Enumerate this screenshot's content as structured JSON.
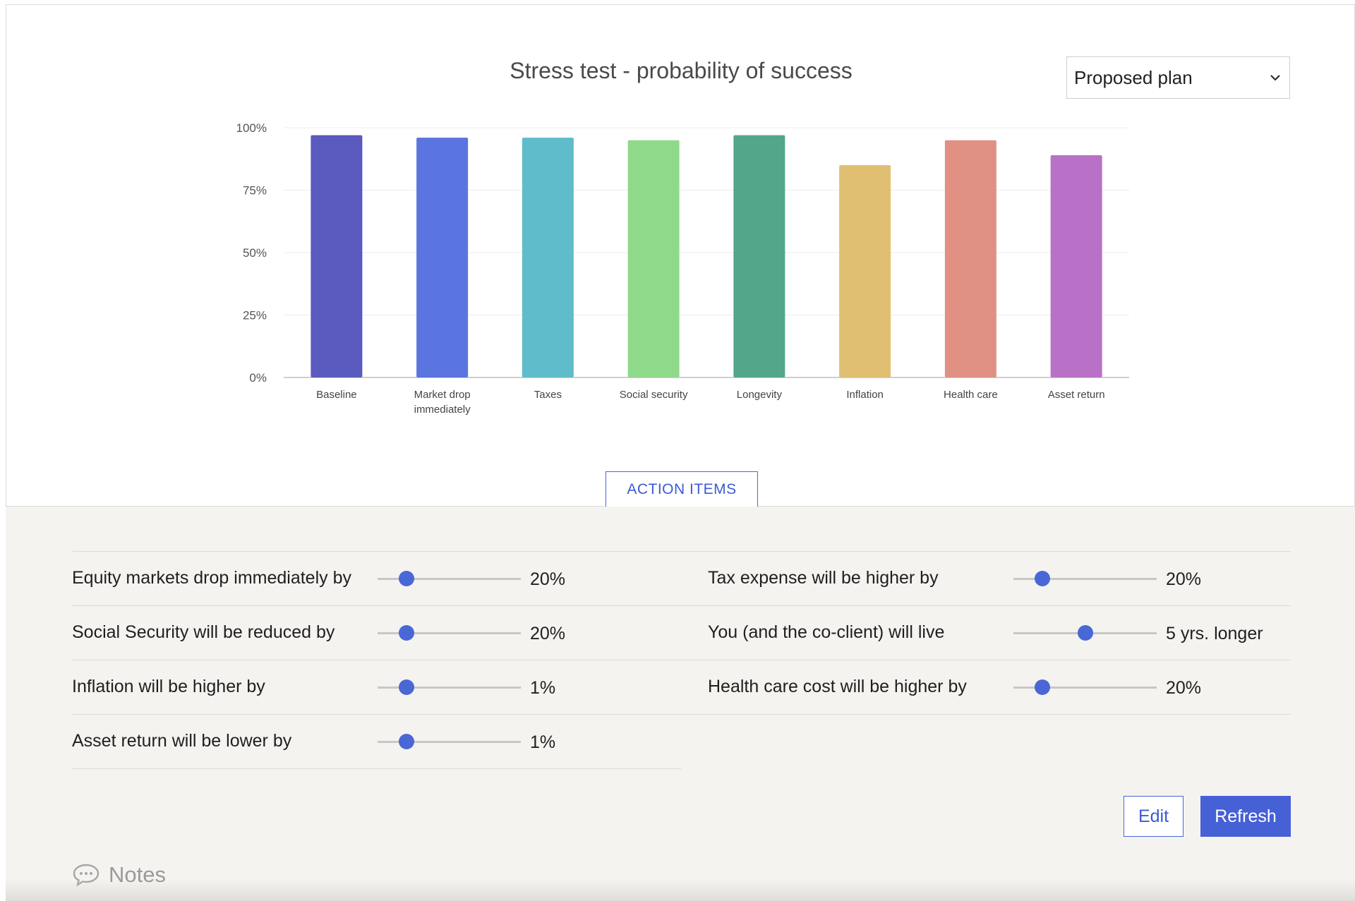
{
  "chart_panel": {
    "title": "Stress test - probability of success",
    "plan_select": {
      "selected": "Proposed plan",
      "icon": "chevron-down-icon"
    },
    "action_items_label": "ACTION ITEMS"
  },
  "chart_data": {
    "type": "bar",
    "title": "Stress test - probability of success",
    "xlabel": "",
    "ylabel": "",
    "categories": [
      "Baseline",
      "Market drop immediately",
      "Taxes",
      "Social security",
      "Longevity",
      "Inflation",
      "Health care",
      "Asset return"
    ],
    "values": [
      97,
      96,
      96,
      95,
      97,
      85,
      95,
      89
    ],
    "colors": [
      "#5a5abf",
      "#5a74e0",
      "#5fbccb",
      "#8fd98b",
      "#54a68b",
      "#e1bf72",
      "#e09183",
      "#b871c7"
    ],
    "yticks": [
      "0%",
      "25%",
      "50%",
      "75%",
      "100%"
    ],
    "ylim": [
      0,
      100
    ],
    "grid": true,
    "legend": "none"
  },
  "sliders": [
    {
      "label": "Equity markets drop immediately by",
      "value": "20%",
      "level": 0.2
    },
    {
      "label": "Tax expense will be higher by",
      "value": "20%",
      "level": 0.2
    },
    {
      "label": "Social Security will be reduced by",
      "value": "20%",
      "level": 0.2
    },
    {
      "label": "You (and the co-client) will live",
      "value": "5 yrs. longer",
      "level": 0.5
    },
    {
      "label": "Inflation will be higher by",
      "value": "1%",
      "level": 0.2
    },
    {
      "label": "Health care cost will be higher by",
      "value": "20%",
      "level": 0.2
    },
    {
      "label": "Asset return will be lower by",
      "value": "1%",
      "level": 0.2
    }
  ],
  "buttons": {
    "edit": "Edit",
    "refresh": "Refresh"
  },
  "notes": {
    "label": "Notes",
    "icon": "speech-bubble-icon"
  },
  "theme": {
    "accent": "#4a67d6",
    "panel_background": "#f4f3f0"
  }
}
